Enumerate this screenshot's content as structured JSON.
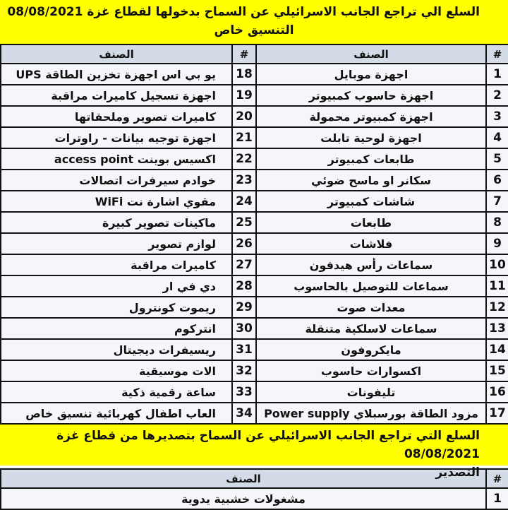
{
  "import": {
    "title_lines": [
      "السلع الي تراجع الجانب الاسرائيلي عن السماح بدخولها لقطاع غزة 08/08/2021",
      "التنسيق خاص"
    ],
    "headers": [
      "#",
      "الصنف"
    ],
    "items": [
      {
        "number": 1,
        "name": "اجهزة موبايل"
      },
      {
        "number": 2,
        "name": "اجهزة حاسوب كمبيوتر"
      },
      {
        "number": 3,
        "name": "اجهزة كمبيوتر محمولة"
      },
      {
        "number": 4,
        "name": "اجهزة لوحية تابلت"
      },
      {
        "number": 5,
        "name": "طابعات كمبيوتر"
      },
      {
        "number": 6,
        "name": "سكانر او ماسح ضوئي"
      },
      {
        "number": 7,
        "name": "شاشات كمبيوتر"
      },
      {
        "number": 8,
        "name": "طابعات"
      },
      {
        "number": 9,
        "name": "فلاشات"
      },
      {
        "number": 10,
        "name": "سماعات رأس هيدفون"
      },
      {
        "number": 11,
        "name": "سماعات للتوصيل بالحاسوب"
      },
      {
        "number": 12,
        "name": "معدات صوت"
      },
      {
        "number": 13,
        "name": "سماعات لاسلكية متنقلة"
      },
      {
        "number": 14,
        "name": "مايكروفون"
      },
      {
        "number": 15,
        "name": "اكسوارات حاسوب"
      },
      {
        "number": 16,
        "name": "تليفونات"
      },
      {
        "number": 17,
        "name": "مزود الطاقة بورسبلاي Power supply"
      },
      {
        "number": 18,
        "name": "يو بي اس اجهزة تخزين الطاقة UPS"
      },
      {
        "number": 19,
        "name": "اجهزة تسجيل كاميرات مراقبة"
      },
      {
        "number": 20,
        "name": "كاميرات تصوير وملحقاتها"
      },
      {
        "number": 21,
        "name": "اجهزة توجيه بيانات - راوترات"
      },
      {
        "number": 22,
        "name": "اكسيس بوينت access point"
      },
      {
        "number": 23,
        "name": "خوادم سيرفرات اتصالات"
      },
      {
        "number": 24,
        "name": "مقوي اشارة نت WiFi"
      },
      {
        "number": 25,
        "name": "ماكينات تصوير كبيرة"
      },
      {
        "number": 26,
        "name": "لوازم تصوير"
      },
      {
        "number": 27,
        "name": "كاميرات مراقبة"
      },
      {
        "number": 28,
        "name": "دي في ار"
      },
      {
        "number": 29,
        "name": "ريموت كونترول"
      },
      {
        "number": 30,
        "name": "انتركوم"
      },
      {
        "number": 31,
        "name": "ريسيفرات ديجيتال"
      },
      {
        "number": 32,
        "name": "الات موسيقية"
      },
      {
        "number": 33,
        "name": "ساعة رقمية ذكية"
      },
      {
        "number": 34,
        "name": "العاب اطفال كهربائية تنسيق خاص"
      }
    ]
  },
  "export": {
    "title_lines": [
      "السلع التي تراجع الجانب الاسرائيلي عن السماح بتصديرها من قطاع غزة 08/08/2021",
      "التصدير"
    ],
    "headers": [
      "#",
      "الصنف"
    ],
    "items": [
      {
        "number": 1,
        "name": "مشغولات خشبية يدوية"
      }
    ]
  }
}
